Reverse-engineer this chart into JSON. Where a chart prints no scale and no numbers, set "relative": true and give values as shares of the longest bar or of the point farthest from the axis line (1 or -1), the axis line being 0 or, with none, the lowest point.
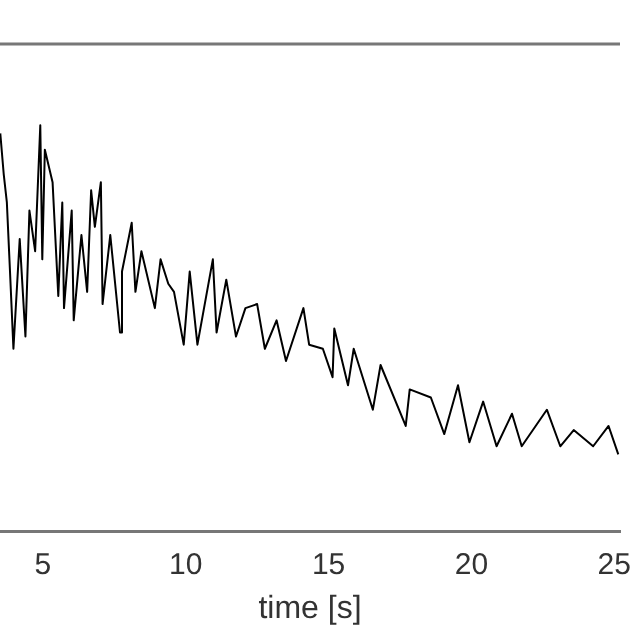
{
  "chart_data": {
    "type": "line",
    "xlabel": "time [s]",
    "relative": true,
    "xlim": [
      3.5,
      25.2
    ],
    "xticks": [
      5,
      10,
      15,
      20,
      25
    ],
    "tick_labels": "x",
    "grid": false,
    "legend": false,
    "marker": "none",
    "series": [
      {
        "color": "#000000",
        "x": [
          3.51,
          3.63,
          3.74,
          3.85,
          3.97,
          4.19,
          4.39,
          4.53,
          4.73,
          4.91,
          4.98,
          5.07,
          5.34,
          5.54,
          5.68,
          5.74,
          6.01,
          6.08,
          6.35,
          6.55,
          6.69,
          6.82,
          7.03,
          7.09,
          7.36,
          7.7,
          7.77,
          8.11,
          8.24,
          8.45,
          8.92,
          9.12,
          9.39,
          9.59,
          9.93,
          10.14,
          10.41,
          10.95,
          11.08,
          11.42,
          11.76,
          12.09,
          12.5,
          12.77,
          13.18,
          13.51,
          14.12,
          14.32,
          14.8,
          15.14,
          15.2,
          15.68,
          15.88,
          16.55,
          16.82,
          17.7,
          17.84,
          18.58,
          19.05,
          19.53,
          19.93,
          20.41,
          20.88,
          21.42,
          21.76,
          22.64,
          23.11,
          23.58,
          24.26,
          24.8,
          25.14
        ],
        "values": [
          0.98,
          0.88,
          0.81,
          0.64,
          0.45,
          0.72,
          0.48,
          0.79,
          0.69,
          1,
          0.67,
          0.94,
          0.86,
          0.58,
          0.81,
          0.55,
          0.79,
          0.52,
          0.73,
          0.59,
          0.84,
          0.75,
          0.86,
          0.56,
          0.73,
          0.49,
          0.64,
          0.76,
          0.59,
          0.69,
          0.55,
          0.67,
          0.61,
          0.59,
          0.46,
          0.64,
          0.46,
          0.67,
          0.49,
          0.62,
          0.48,
          0.55,
          0.56,
          0.45,
          0.52,
          0.42,
          0.55,
          0.46,
          0.45,
          0.38,
          0.5,
          0.36,
          0.45,
          0.3,
          0.41,
          0.26,
          0.35,
          0.33,
          0.24,
          0.36,
          0.22,
          0.32,
          0.21,
          0.29,
          0.21,
          0.3,
          0.21,
          0.25,
          0.21,
          0.26,
          0.19
        ]
      }
    ]
  }
}
